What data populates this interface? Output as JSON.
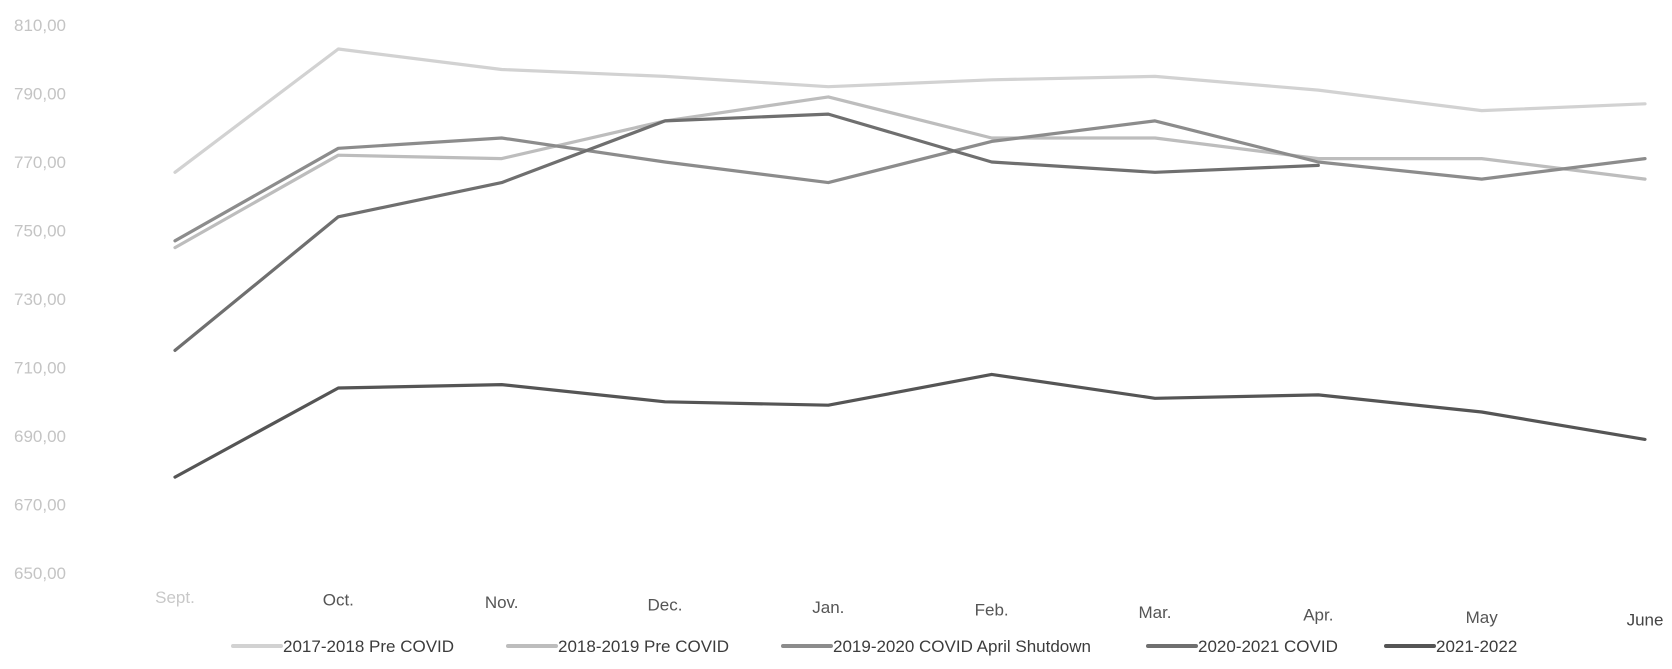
{
  "chart_data": {
    "type": "line",
    "title": "",
    "xlabel": "",
    "ylabel": "",
    "categories": [
      "Sept.",
      "Oct.",
      "Nov.",
      "Dec.",
      "Jan.",
      "Feb.",
      "Mar.",
      "Apr.",
      "May",
      "June"
    ],
    "ylim": [
      650,
      810
    ],
    "yticks": [
      "650,00",
      "670,00",
      "690,00",
      "710,00",
      "730,00",
      "750,00",
      "770,00",
      "790,00",
      "810,00"
    ],
    "grid": false,
    "legend_position": "bottom",
    "series": [
      {
        "name": "2017-2018 Pre COVID",
        "color": "#d2d2d2",
        "values": [
          767,
          803,
          797,
          795,
          792,
          794,
          795,
          791,
          785,
          787
        ]
      },
      {
        "name": "2018-2019 Pre COVID",
        "color": "#bdbdbd",
        "values": [
          745,
          772,
          771,
          782,
          789,
          777,
          777,
          771,
          771,
          765
        ]
      },
      {
        "name": "2019-2020 COVID April Shutdown",
        "color": "#8c8c8c",
        "values": [
          747,
          774,
          777,
          770,
          764,
          776,
          782,
          770,
          765,
          771
        ]
      },
      {
        "name": "2020-2021 COVID",
        "color": "#6f6f6f",
        "values": [
          715,
          754,
          764,
          782,
          784,
          770,
          767,
          769,
          null,
          null
        ]
      },
      {
        "name": "2021-2022",
        "color": "#555555",
        "values": [
          678,
          704,
          705,
          700,
          699,
          708,
          701,
          702,
          697,
          689
        ]
      }
    ]
  }
}
